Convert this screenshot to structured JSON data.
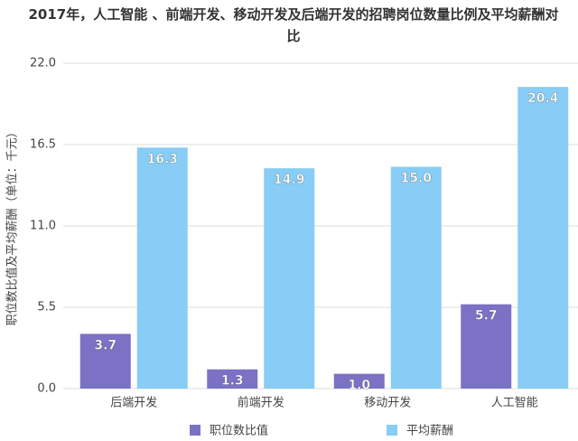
{
  "chart_data": {
    "type": "bar",
    "title": "2017年，人工智能 、前端开发、移动开发及后端开发的招聘岗位数量比例及平均薪酬对比",
    "y_label": "职位数比值及平均薪酬（单位：千元）",
    "categories": [
      "后端开发",
      "前端开发",
      "移动开发",
      "人工智能"
    ],
    "series": [
      {
        "name": "职位数比值",
        "color": "#7b72c5",
        "values": [
          3.7,
          1.3,
          1,
          5.7
        ],
        "value_labels": [
          "3.7",
          "1.3",
          "1.0",
          "5.7"
        ]
      },
      {
        "name": "平均薪酬",
        "color": "#87cdf5",
        "values": [
          16.3,
          14.9,
          15,
          20.4
        ],
        "value_labels": [
          "16.3",
          "14.9",
          "15.0",
          "20.4"
        ]
      }
    ],
    "ylim": [
      0,
      22
    ],
    "yticks": [
      {
        "value": 0,
        "label": "0.0"
      },
      5.5,
      {
        "value": 11,
        "label": "11.0"
      },
      16.5,
      {
        "value": 22,
        "label": "22.0"
      }
    ],
    "grid": true,
    "legend": "bottom"
  }
}
